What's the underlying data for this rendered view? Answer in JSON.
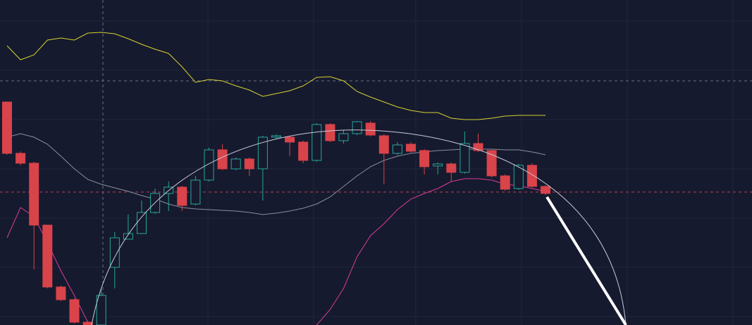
{
  "chart_data": {
    "type": "candlestick",
    "ylim": [
      0,
      462
    ],
    "up_color": "#26a69a",
    "down_color": "#d9434a",
    "open": [
      317,
      244,
      230,
      142,
      54,
      36,
      4,
      0,
      82,
      122,
      130,
      160,
      187,
      196,
      172,
      206,
      249,
      222,
      236,
      222,
      267,
      267,
      260,
      234,
      285,
      262,
      272,
      287,
      269,
      244,
      257,
      248,
      226,
      229,
      217,
      258,
      248,
      212,
      194,
      227,
      197
    ],
    "high": [
      317,
      247,
      232,
      142,
      56,
      38,
      6,
      52,
      132,
      157,
      177,
      194,
      204,
      198,
      212,
      252,
      257,
      238,
      238,
      269,
      271,
      269,
      262,
      287,
      287,
      277,
      290,
      290,
      271,
      260,
      260,
      250,
      231,
      231,
      275,
      272,
      250,
      214,
      229,
      230,
      199
    ],
    "low": [
      242,
      227,
      79,
      52,
      34,
      2,
      0,
      0,
      52,
      122,
      130,
      158,
      162,
      162,
      170,
      204,
      220,
      220,
      212,
      177,
      265,
      240,
      230,
      232,
      260,
      258,
      270,
      268,
      200,
      242,
      245,
      214,
      214,
      204,
      215,
      246,
      210,
      191,
      192,
      195,
      185
    ],
    "close": [
      244,
      230,
      142,
      54,
      36,
      4,
      0,
      42,
      124,
      130,
      160,
      187,
      196,
      170,
      206,
      249,
      222,
      236,
      222,
      267,
      269,
      260,
      234,
      285,
      262,
      272,
      289,
      270,
      244,
      256,
      247,
      225,
      229,
      217,
      258,
      248,
      212,
      193,
      227,
      197,
      187
    ],
    "lines": [
      {
        "color": "#d4d232",
        "values": [
          397,
          377,
          384,
          405,
          408,
          405,
          415,
          416,
          414,
          407,
          399,
          392,
          386,
          367,
          345,
          349,
          347,
          340,
          334,
          325,
          329,
          333,
          340,
          352,
          353,
          347,
          332,
          324,
          317,
          310,
          305,
          302,
          302,
          294,
          292,
          292,
          294,
          297,
          298,
          298,
          298
        ]
      },
      {
        "color": "#8a8ea0",
        "values": [
          267,
          272,
          267,
          257,
          240,
          222,
          207,
          200,
          195,
          190,
          184,
          179,
          172,
          167,
          165,
          164,
          163,
          162,
          160,
          157,
          159,
          162,
          166,
          172,
          182,
          197,
          212,
          225,
          234,
          240,
          244,
          246,
          248,
          249,
          250,
          250,
          250,
          249,
          249,
          246,
          242
        ]
      },
      {
        "color": "#d63c9a",
        "values": [
          124,
          167,
          154,
          117,
          77,
          42,
          4,
          null,
          null,
          null,
          null,
          null,
          null,
          null,
          null,
          null,
          null,
          null,
          null,
          null,
          null,
          null,
          null,
          0,
          22,
          52,
          97,
          127,
          144,
          164,
          179,
          187,
          194,
          204,
          208,
          208,
          206,
          200,
          198,
          194,
          190
        ]
      }
    ]
  }
}
